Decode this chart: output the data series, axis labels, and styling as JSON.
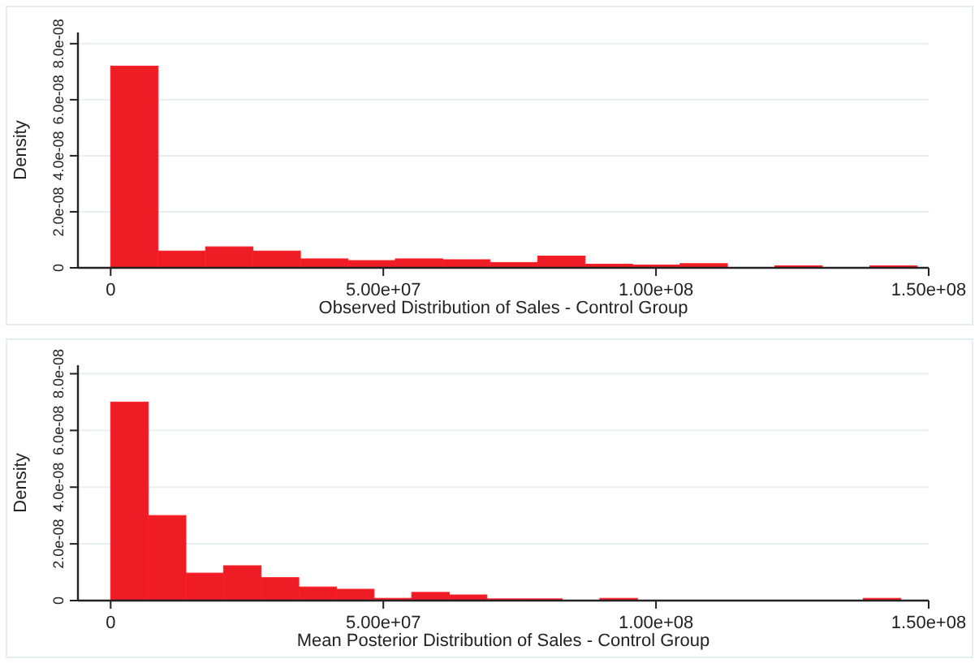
{
  "chart_data": [
    {
      "type": "histogram",
      "xlabel": "Observed Distribution of Sales - Control Group",
      "ylabel": "Density",
      "color": "#ee1c24",
      "bins": [
        0,
        8700000.0,
        17400000.0,
        26100000.0,
        34800000.0,
        43500000.0,
        52200000.0,
        60900000.0,
        69600000.0,
        78300000.0,
        87000000.0,
        95700000.0,
        104400000.0,
        113100000.0,
        121800000.0,
        130500000.0,
        139200000.0,
        147900000.0
      ],
      "values": [
        7.2e-08,
        6e-09,
        7.5e-09,
        6e-09,
        3.2e-09,
        2.6e-09,
        3.2e-09,
        2.9e-09,
        1.9e-09,
        4.2e-09,
        1.3e-09,
        1e-09,
        1.5e-09,
        0,
        7e-10,
        0,
        7e-10
      ],
      "xlim": [
        -6000000.0,
        150000000.0
      ],
      "xticks": [
        0,
        {
          "value": 50000000.0,
          "label": "5.00e+07"
        },
        {
          "value": 100000000.0,
          "label": "1.00e+08"
        },
        {
          "value": 150000000.0,
          "label": "1.50e+08"
        }
      ],
      "ylim": [
        0,
        8.4e-08
      ],
      "yticks": [
        0,
        {
          "value": 2e-08,
          "label": "2.0e-08"
        },
        {
          "value": 4e-08,
          "label": "4.0e-08"
        },
        {
          "value": 6e-08,
          "label": "6.0e-08"
        },
        {
          "value": 8e-08,
          "label": "8.0e-08"
        }
      ],
      "grid": "y"
    },
    {
      "type": "histogram",
      "xlabel": "Mean Posterior Distribution of Sales - Control Group",
      "ylabel": "Density",
      "color": "#ee1c24",
      "bins": [
        0,
        6900000.0,
        13800000.0,
        20700000.0,
        27600000.0,
        34500000.0,
        41400000.0,
        48300000.0,
        55200000.0,
        62100000.0,
        69000000.0,
        75900000.0,
        82800000.0,
        89700000.0,
        96600000.0,
        103500000.0,
        110400000.0,
        117300000.0,
        124200000.0,
        131100000.0,
        138000000.0,
        144900000.0
      ],
      "values": [
        7e-08,
        3e-08,
        9.7e-09,
        1.23e-08,
        8.1e-09,
        4.8e-09,
        4e-09,
        8e-10,
        2.9e-09,
        2e-09,
        6e-10,
        6e-10,
        0,
        8e-10,
        0,
        0,
        0,
        0,
        0,
        0,
        8e-10
      ],
      "xlim": [
        -6000000.0,
        150000000.0
      ],
      "xticks": [
        0,
        {
          "value": 50000000.0,
          "label": "5.00e+07"
        },
        {
          "value": 100000000.0,
          "label": "1.00e+08"
        },
        {
          "value": 150000000.0,
          "label": "1.50e+08"
        }
      ],
      "ylim": [
        0,
        8.3e-08
      ],
      "yticks": [
        0,
        {
          "value": 2e-08,
          "label": "2.0e-08"
        },
        {
          "value": 4e-08,
          "label": "4.0e-08"
        },
        {
          "value": 6e-08,
          "label": "6.0e-08"
        },
        {
          "value": 8e-08,
          "label": "8.0e-08"
        }
      ],
      "grid": "y"
    }
  ]
}
